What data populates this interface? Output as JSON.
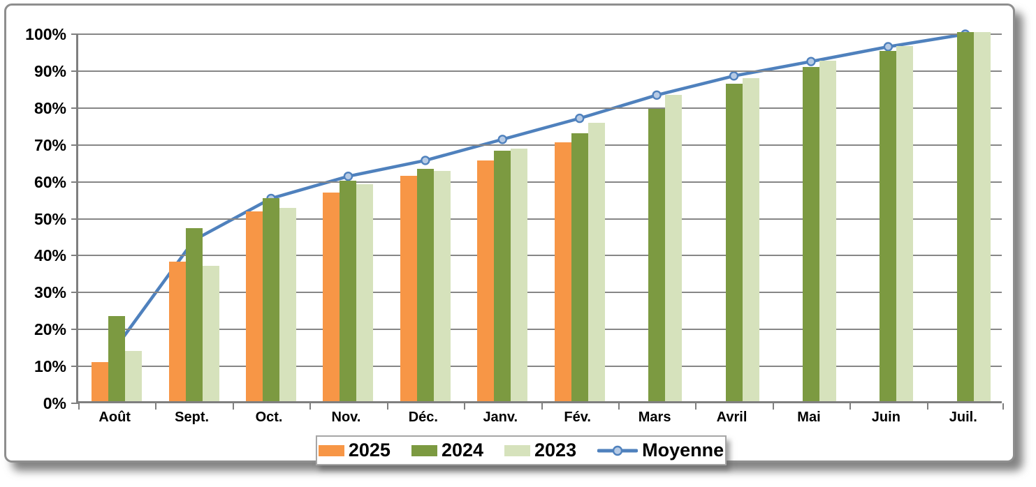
{
  "chart_data": {
    "type": "bar",
    "title": "",
    "xlabel": "",
    "ylabel": "",
    "ylim": [
      0,
      100
    ],
    "ytick_step": 10,
    "ytick_labels": [
      "0%",
      "10%",
      "20%",
      "30%",
      "40%",
      "50%",
      "60%",
      "70%",
      "80%",
      "90%",
      "100%"
    ],
    "grid": true,
    "legend_position": "bottom",
    "categories": [
      "Août",
      "Sept.",
      "Oct.",
      "Nov.",
      "Déc.",
      "Janv.",
      "Fév.",
      "Mars",
      "Avril",
      "Mai",
      "Juin",
      "Juil."
    ],
    "series": [
      {
        "name": "2025",
        "type": "bar",
        "color": "#F79646",
        "values": [
          10.5,
          37.8,
          51.5,
          56.6,
          61.0,
          65.3,
          70.1,
          null,
          null,
          null,
          null,
          null
        ]
      },
      {
        "name": "2024",
        "type": "bar",
        "color": "#7C9A41",
        "values": [
          23.0,
          46.8,
          55.1,
          59.8,
          63.0,
          67.8,
          72.5,
          79.3,
          86.0,
          90.6,
          94.9,
          100.0
        ]
      },
      {
        "name": "2023",
        "type": "bar",
        "color": "#D6E2BC",
        "values": [
          13.7,
          36.7,
          52.3,
          58.8,
          62.3,
          68.5,
          75.4,
          83.0,
          87.6,
          92.2,
          96.2,
          100.0
        ]
      },
      {
        "name": "Moyenne",
        "type": "line",
        "color": "#4F81BD",
        "marker_fill": "#B7CBE5",
        "values": [
          15.5,
          44.2,
          55.5,
          61.5,
          65.8,
          71.5,
          77.2,
          83.5,
          88.7,
          92.6,
          96.6,
          100.0
        ]
      }
    ]
  }
}
